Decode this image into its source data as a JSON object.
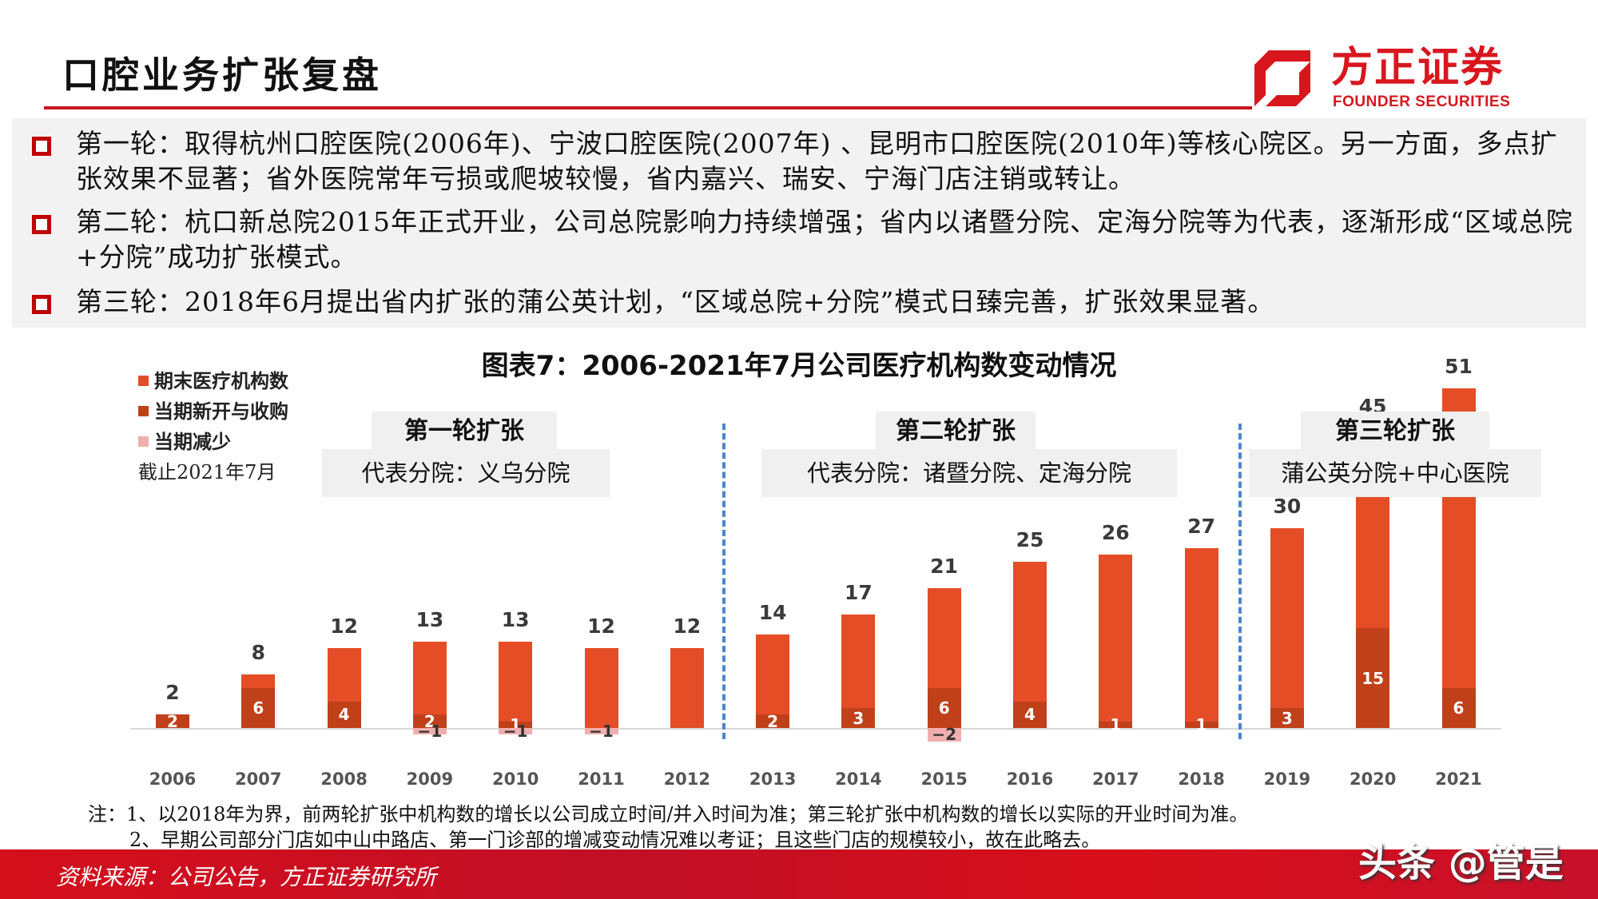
{
  "header": {
    "title": "口腔业务扩张复盘",
    "logo_cn": "方正证券",
    "logo_en": "FOUNDER SECURITIES"
  },
  "bullets": [
    {
      "text": "第一轮：取得杭州口腔医院(2006年)、宁波口腔医院(2007年) 、昆明市口腔医院(2010年)等核心院区。另一方面，多点扩张效果不显著；省外医院常年亏损或爬坡较慢，省内嘉兴、瑞安、宁海门店注销或转让。"
    },
    {
      "text": "第二轮：杭口新总院2015年正式开业，公司总院影响力持续增强；省内以诸暨分院、定海分院等为代表，逐渐形成“区域总院+分院”成功扩张模式。"
    },
    {
      "text": "第三轮：2018年6月提出省内扩张的蒲公英计划，“区域总院+分院”模式日臻完善，扩张效果显著。"
    }
  ],
  "phases": [
    {
      "title": "第一轮扩张",
      "subtitle": "代表分院：义乌分院"
    },
    {
      "title": "第二轮扩张",
      "subtitle": "代表分院：诸暨分院、定海分院"
    },
    {
      "title": "第三轮扩张",
      "subtitle": "蒲公英分院+中心医院"
    }
  ],
  "legend": {
    "items": [
      {
        "label": "期末医疗机构数",
        "color": "#e44d26"
      },
      {
        "label": "当期新开与收购",
        "color": "#c0401a"
      },
      {
        "label": "当期减少",
        "color": "#f2aeae"
      }
    ],
    "as_of": "截止2021年7月"
  },
  "chart_data": {
    "type": "bar",
    "title": "图表7：2006-2021年7月公司医疗机构数变动情况",
    "xlabel": "",
    "ylabel": "",
    "categories": [
      "2006",
      "2007",
      "2008",
      "2009",
      "2010",
      "2011",
      "2012",
      "2013",
      "2014",
      "2015",
      "2016",
      "2017",
      "2018",
      "2019",
      "2020",
      "2021"
    ],
    "series": [
      {
        "name": "期末医疗机构数",
        "color": "#e44d26",
        "values": [
          2,
          8,
          12,
          13,
          13,
          12,
          12,
          14,
          17,
          21,
          25,
          26,
          27,
          30,
          45,
          51
        ]
      },
      {
        "name": "当期新开与收购",
        "color": "#c0401a",
        "values": [
          2,
          6,
          4,
          2,
          1,
          0,
          0,
          2,
          3,
          6,
          4,
          1,
          1,
          3,
          15,
          6
        ]
      },
      {
        "name": "当期减少",
        "color": "#f2aeae",
        "values": [
          0,
          0,
          0,
          -1,
          -1,
          -1,
          0,
          0,
          0,
          -2,
          0,
          0,
          0,
          0,
          0,
          0
        ]
      }
    ],
    "phase_dividers_after": [
      "2012",
      "2018"
    ],
    "grid": false,
    "legend_position": "top-left"
  },
  "notes": [
    "注：1、以2018年为界，前两轮扩张中机构数的增长以公司成立时间/并入时间为准；第三轮扩张中机构数的增长以实际的开业时间为准。",
    "2、早期公司部分门店如中山中路店、第一门诊部的增减变动情况难以考证；且这些门店的规模较小，故在此略去。"
  ],
  "footer": {
    "source": "资料来源：公司公告，方正证券研究所",
    "watermark": "头条 @管是"
  }
}
